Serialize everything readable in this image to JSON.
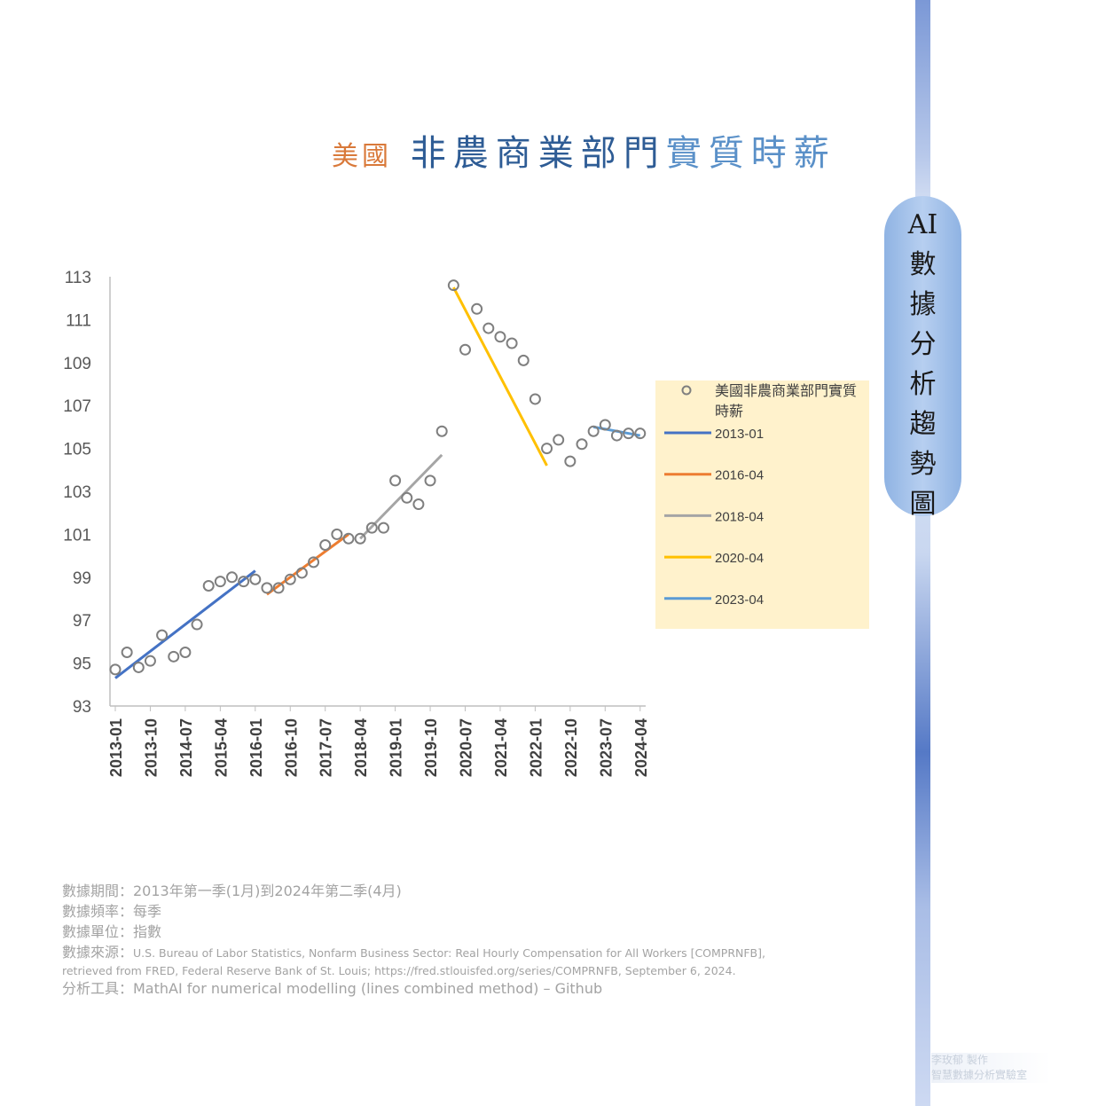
{
  "title": {
    "part1": "美國",
    "part2": "非農商業部門",
    "part3": "實質時薪"
  },
  "badge": [
    "AI",
    "數",
    "據",
    "分",
    "析",
    "趨",
    "勢",
    "圖"
  ],
  "notes": {
    "period": "數據期間：2013年第一季(1月)到2024年第二季(4月)",
    "frequency": "數據頻率：每季",
    "unit": "數據單位：指數",
    "source_label": "數據來源：",
    "source_text": "U.S. Bureau of Labor Statistics, Nonfarm Business Sector: Real Hourly Compensation for All Workers [COMPRNFB],",
    "source_text2": "retrieved from FRED, Federal Reserve Bank of St. Louis; https://fred.stlouisfed.org/series/COMPRNFB, September 6, 2024.",
    "tool": "分析工具：MathAI for numerical modelling (lines combined method) – Github"
  },
  "credit": [
    "李玫郁 製作",
    "智慧數據分析實驗室"
  ],
  "chart_data": {
    "type": "scatter",
    "ylim": [
      93,
      113
    ],
    "yticks": [
      93,
      95,
      97,
      99,
      101,
      103,
      105,
      107,
      109,
      111,
      113
    ],
    "xtick_labels": [
      "2013-01",
      "2013-10",
      "2014-07",
      "2015-04",
      "2016-01",
      "2016-10",
      "2017-07",
      "2018-04",
      "2019-01",
      "2019-10",
      "2020-07",
      "2021-04",
      "2022-01",
      "2022-10",
      "2023-07",
      "2024-04"
    ],
    "x": [
      "2013-01",
      "2013-04",
      "2013-07",
      "2013-10",
      "2014-01",
      "2014-04",
      "2014-07",
      "2014-10",
      "2015-01",
      "2015-04",
      "2015-07",
      "2015-10",
      "2016-01",
      "2016-04",
      "2016-07",
      "2016-10",
      "2017-01",
      "2017-04",
      "2017-07",
      "2017-10",
      "2018-01",
      "2018-04",
      "2018-07",
      "2018-10",
      "2019-01",
      "2019-04",
      "2019-07",
      "2019-10",
      "2020-01",
      "2020-04",
      "2020-07",
      "2020-10",
      "2021-01",
      "2021-04",
      "2021-07",
      "2021-10",
      "2022-01",
      "2022-04",
      "2022-07",
      "2022-10",
      "2023-01",
      "2023-04",
      "2023-07",
      "2023-10",
      "2024-01",
      "2024-04"
    ],
    "series": [
      {
        "name": "美國非農商業部門實質時薪",
        "marker": "hollow-circle",
        "color": "#7f7f7f",
        "values": [
          94.7,
          95.5,
          94.8,
          95.1,
          96.3,
          95.3,
          95.5,
          96.8,
          98.6,
          98.8,
          99.0,
          98.8,
          98.9,
          98.5,
          98.5,
          98.9,
          99.2,
          99.7,
          100.5,
          101.0,
          100.8,
          100.8,
          101.3,
          101.3,
          103.5,
          102.7,
          102.4,
          103.5,
          105.8,
          112.6,
          109.6,
          111.5,
          110.6,
          110.2,
          109.9,
          109.1,
          107.3,
          105.0,
          105.4,
          104.4,
          105.2,
          105.8,
          106.1,
          105.6,
          105.7,
          105.7
        ]
      }
    ],
    "trend_lines": [
      {
        "name": "2013-01",
        "color": "#4472c4",
        "x": [
          "2013-01",
          "2016-01"
        ],
        "y": [
          94.3,
          99.3
        ]
      },
      {
        "name": "2016-04",
        "color": "#ed7d31",
        "x": [
          "2016-04",
          "2018-01"
        ],
        "y": [
          98.2,
          101.0
        ]
      },
      {
        "name": "2018-04",
        "color": "#a5a5a5",
        "x": [
          "2018-04",
          "2020-01"
        ],
        "y": [
          100.8,
          104.7
        ]
      },
      {
        "name": "2020-04",
        "color": "#ffc000",
        "x": [
          "2020-04",
          "2022-04"
        ],
        "y": [
          112.5,
          104.2
        ]
      },
      {
        "name": "2023-04",
        "color": "#5b9bd5",
        "x": [
          "2023-04",
          "2024-04"
        ],
        "y": [
          106.0,
          105.6
        ]
      }
    ],
    "legend": {
      "placement": "right",
      "background": "#fff2cc"
    },
    "grid": false
  }
}
